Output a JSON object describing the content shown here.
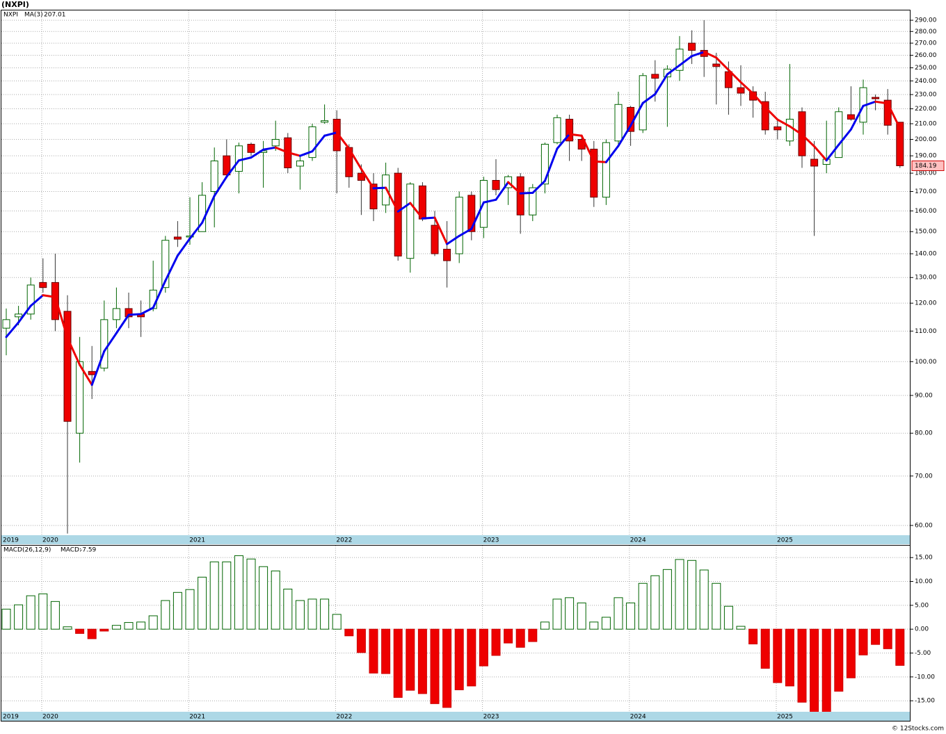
{
  "chart_data": [
    {
      "type": "candlestick",
      "title": "(NXPI)",
      "symbol": "NXPI",
      "log_scale": true,
      "grid": true,
      "up_color": "#006400",
      "down_color": "#ee0000",
      "categories": [
        "2019",
        null,
        null,
        "2020",
        null,
        null,
        null,
        null,
        null,
        null,
        null,
        null,
        null,
        null,
        null,
        "2021",
        null,
        null,
        null,
        null,
        null,
        null,
        null,
        null,
        null,
        null,
        null,
        "2022",
        null,
        null,
        null,
        null,
        null,
        null,
        null,
        null,
        null,
        null,
        null,
        "2023",
        null,
        null,
        null,
        null,
        null,
        null,
        null,
        null,
        null,
        null,
        null,
        "2024",
        null,
        null,
        null,
        null,
        null,
        null,
        null,
        null,
        null,
        null,
        null,
        "2025",
        null,
        null,
        null,
        null,
        null,
        null,
        null,
        null,
        null,
        null
      ],
      "open": [
        111,
        115,
        116,
        128,
        128,
        117,
        80,
        97,
        98,
        114,
        118,
        116,
        118,
        126,
        147.5,
        147.5,
        150,
        170,
        190,
        181,
        197,
        192,
        196,
        201,
        184,
        189,
        211,
        213,
        195,
        180,
        174,
        163,
        180,
        138,
        173,
        153,
        142,
        140,
        168,
        152,
        176,
        172,
        178,
        158,
        174,
        198,
        213,
        200,
        194,
        167,
        199,
        221,
        206,
        245,
        243,
        248,
        270,
        264,
        253,
        247,
        235,
        232,
        225,
        208,
        199,
        218,
        188,
        185,
        189,
        216,
        211,
        228,
        226,
        211
      ],
      "high": [
        118,
        119,
        130,
        138,
        140,
        123,
        108,
        105,
        121,
        126,
        124,
        121,
        137,
        148,
        155,
        167,
        175,
        195,
        200,
        198,
        198,
        199,
        212,
        204,
        190,
        210,
        223,
        219,
        197,
        185,
        180,
        186,
        183,
        175,
        175,
        160,
        155,
        170,
        170,
        178,
        188,
        179,
        180,
        174,
        198,
        216,
        216,
        203,
        199,
        200,
        232,
        222,
        246,
        256,
        252,
        276,
        281,
        290,
        262,
        255,
        252,
        236,
        232,
        212,
        253,
        221,
        199,
        212,
        221,
        236,
        241,
        230,
        234,
        211
      ],
      "low": [
        102,
        112,
        114,
        124,
        110,
        58.5,
        73,
        89,
        97,
        111,
        111,
        108,
        117,
        124,
        143,
        144,
        150,
        152,
        177,
        169,
        190,
        172,
        193,
        180,
        171,
        187,
        210,
        169,
        172,
        158,
        155,
        159,
        137,
        132,
        155,
        139,
        126,
        136,
        146,
        147,
        168,
        163,
        149,
        155,
        169,
        197,
        187,
        187,
        162,
        163,
        197,
        196,
        204,
        225,
        208,
        240,
        253,
        243,
        223,
        216,
        222,
        214,
        203,
        200,
        196,
        183,
        148,
        180,
        189,
        212,
        203,
        219,
        203,
        183
      ],
      "close": [
        114,
        116,
        127,
        126,
        114,
        83,
        100,
        96,
        114,
        118,
        115,
        115,
        125,
        146,
        146.5,
        148,
        168,
        187,
        179,
        196,
        192,
        193,
        200,
        183,
        187,
        208,
        212,
        193,
        178,
        176,
        161,
        179,
        139,
        174,
        156,
        140,
        137,
        167,
        150,
        176,
        171,
        178,
        158,
        172,
        197,
        214,
        199,
        194,
        167,
        198,
        223,
        205,
        244,
        242,
        249,
        265,
        264,
        259,
        251,
        235,
        231,
        226,
        206,
        206,
        213,
        190,
        184,
        188,
        218,
        213,
        235,
        227,
        209,
        184.19
      ],
      "series": [
        {
          "name": "MA(3)",
          "up_color": "#0000ee",
          "down_color": "#ee0000",
          "values": [
            108,
            113,
            119,
            123,
            122.3,
            107.7,
            99,
            93,
            103.3,
            109.3,
            115.7,
            116,
            118.3,
            128.7,
            139.2,
            146.8,
            154.2,
            167.7,
            178,
            187.3,
            189,
            193.7,
            195,
            192,
            190,
            192.7,
            202.3,
            204.3,
            194.3,
            182.3,
            171.7,
            172,
            159.7,
            164,
            156.3,
            156.7,
            144.3,
            148,
            151.3,
            164.3,
            165.7,
            175,
            169,
            169.3,
            175.7,
            194.3,
            203.3,
            202.3,
            186.7,
            186.3,
            196,
            208.7,
            224,
            230.3,
            245,
            252,
            259.3,
            262.7,
            258,
            248.3,
            239,
            230.7,
            221,
            212.7,
            208.3,
            203,
            195.7,
            187.3,
            196.7,
            206.3,
            222,
            225,
            223.7,
            207.01
          ]
        }
      ],
      "ylim": [
        58.2,
        299
      ],
      "yticks": [
        {
          "value": 60,
          "label": "60.00"
        },
        {
          "value": 70,
          "label": "70.00"
        },
        {
          "value": 80,
          "label": "80.00"
        },
        {
          "value": 90,
          "label": "90.00"
        },
        {
          "value": 100,
          "label": "100.00"
        },
        {
          "value": 110,
          "label": "110.00"
        },
        {
          "value": 120,
          "label": "120.00"
        },
        {
          "value": 130,
          "label": "130.00"
        },
        {
          "value": 140,
          "label": "140.00"
        },
        {
          "value": 150,
          "label": "150.00"
        },
        {
          "value": 160,
          "label": "160.00"
        },
        {
          "value": 170,
          "label": "170.00"
        },
        {
          "value": 180,
          "label": "180.00"
        },
        {
          "value": 190,
          "label": "190.00"
        },
        {
          "value": 200,
          "label": "200.00"
        },
        {
          "value": 210,
          "label": "210.00"
        },
        {
          "value": 220,
          "label": "220.00"
        },
        {
          "value": 230,
          "label": "230.00"
        },
        {
          "value": 240,
          "label": "240.00"
        },
        {
          "value": 250,
          "label": "250.00"
        },
        {
          "value": 260,
          "label": "260.00"
        },
        {
          "value": 270,
          "label": "270.00"
        },
        {
          "value": 280,
          "label": "280.00"
        },
        {
          "value": 290,
          "label": "290.00"
        }
      ],
      "footer": "© 12Stocks.com"
    },
    {
      "type": "bar",
      "title": "MACD(26,12,9)",
      "series_name": "MACD:",
      "up_color": "#006400",
      "down_color": "#ee0000",
      "grid": true,
      "values": [
        4.2,
        5.1,
        7.0,
        7.4,
        5.8,
        0.5,
        -0.9,
        -2.0,
        -0.4,
        0.8,
        1.4,
        1.5,
        2.8,
        6.0,
        7.7,
        8.3,
        10.9,
        14.1,
        14.1,
        15.4,
        14.7,
        13.1,
        12.2,
        8.4,
        6.0,
        6.3,
        6.3,
        3.1,
        -1.4,
        -4.9,
        -9.2,
        -9.3,
        -14.3,
        -12.8,
        -13.5,
        -15.6,
        -16.4,
        -12.7,
        -11.9,
        -7.7,
        -5.5,
        -2.9,
        -3.8,
        -2.6,
        1.5,
        6.3,
        6.6,
        5.5,
        1.5,
        2.5,
        6.6,
        5.5,
        9.6,
        11.2,
        12.5,
        14.6,
        14.4,
        12.4,
        9.6,
        4.8,
        0.6,
        -3.1,
        -8.2,
        -11.2,
        -11.9,
        -15.3,
        -18.5,
        -18.2,
        -13.0,
        -10.2,
        -5.4,
        -3.2,
        -4.1,
        -7.59
      ],
      "ylim": [
        -17.3,
        17.5
      ],
      "yticks": [
        {
          "value": -15,
          "label": "-15.00"
        },
        {
          "value": -10,
          "label": "-10.00"
        },
        {
          "value": -5,
          "label": "-5.00"
        },
        {
          "value": 0,
          "label": "0.00"
        },
        {
          "value": 5,
          "label": "5.00"
        },
        {
          "value": 10,
          "label": "10.00"
        },
        {
          "value": 15,
          "label": "15.00"
        }
      ]
    }
  ]
}
